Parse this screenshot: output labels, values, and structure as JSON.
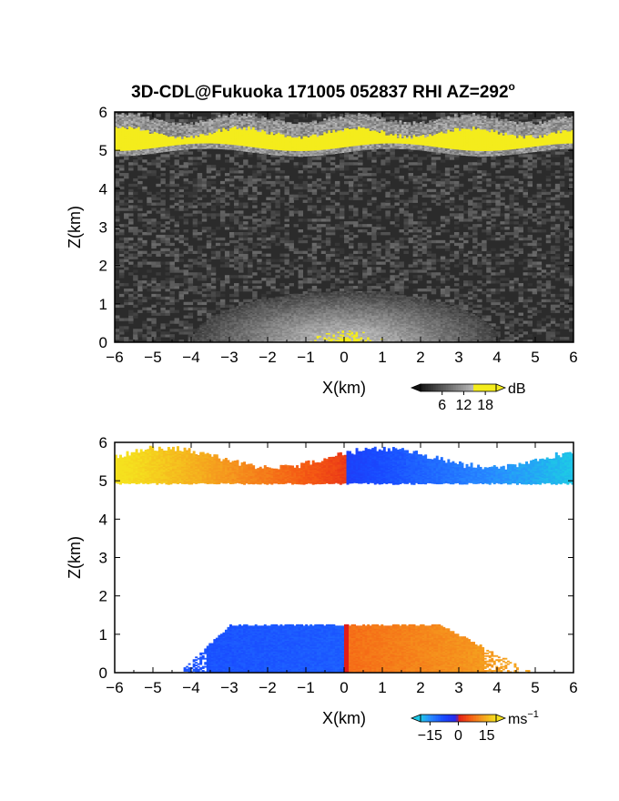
{
  "title": "3D-CDL@Fukuoka 171005 052837 RHI AZ=292",
  "title_sup": "o",
  "chart_data": [
    {
      "type": "heatmap",
      "panel": "reflectivity",
      "xlabel": "X(km)",
      "ylabel": "Z(km)",
      "xlim": [
        -6,
        6
      ],
      "ylim": [
        0,
        6
      ],
      "xticks": [
        "-6",
        "-5",
        "-4",
        "-3",
        "-2",
        "-1",
        "0",
        "1",
        "2",
        "3",
        "4",
        "5",
        "6"
      ],
      "yticks": [
        "0",
        "1",
        "2",
        "3",
        "4",
        "5",
        "6"
      ],
      "colorbar": {
        "ticks": [
          "6",
          "12",
          "18"
        ],
        "unit": "dB",
        "range": [
          0,
          21
        ]
      },
      "features": [
        {
          "name": "upper echo layer",
          "z_range": [
            4.9,
            5.8
          ],
          "x_range": [
            -6,
            6
          ],
          "max_db": 20
        },
        {
          "name": "near-ground fan",
          "z_range": [
            0,
            1.3
          ],
          "x_range": [
            -4,
            4
          ],
          "max_db": 12
        }
      ],
      "colors": {
        "background": "#2b2b2b",
        "strong": "#f4ec1c"
      }
    },
    {
      "type": "heatmap",
      "panel": "doppler-velocity",
      "xlabel": "X(km)",
      "ylabel": "Z(km)",
      "xlim": [
        -6,
        6
      ],
      "ylim": [
        0,
        6
      ],
      "xticks": [
        "-6",
        "-5",
        "-4",
        "-3",
        "-2",
        "-1",
        "0",
        "1",
        "2",
        "3",
        "4",
        "5",
        "6"
      ],
      "yticks": [
        "0",
        "1",
        "2",
        "3",
        "4",
        "5",
        "6"
      ],
      "colorbar": {
        "ticks": [
          "−15",
          "0",
          "15"
        ],
        "unit": "ms",
        "unit_sup": "−1",
        "range": [
          -20,
          20
        ]
      },
      "features": [
        {
          "name": "upper layer",
          "z_range": [
            4.9,
            5.9
          ],
          "left_velocity": 18,
          "right_velocity": -14
        },
        {
          "name": "low-level layer",
          "z_range": [
            0,
            1.2
          ],
          "left_velocity": -9,
          "right_velocity": 9
        }
      ],
      "colors": {
        "negative": "#1a4bff",
        "zero": "#d82a20",
        "positive": "#f3d21a"
      }
    }
  ]
}
